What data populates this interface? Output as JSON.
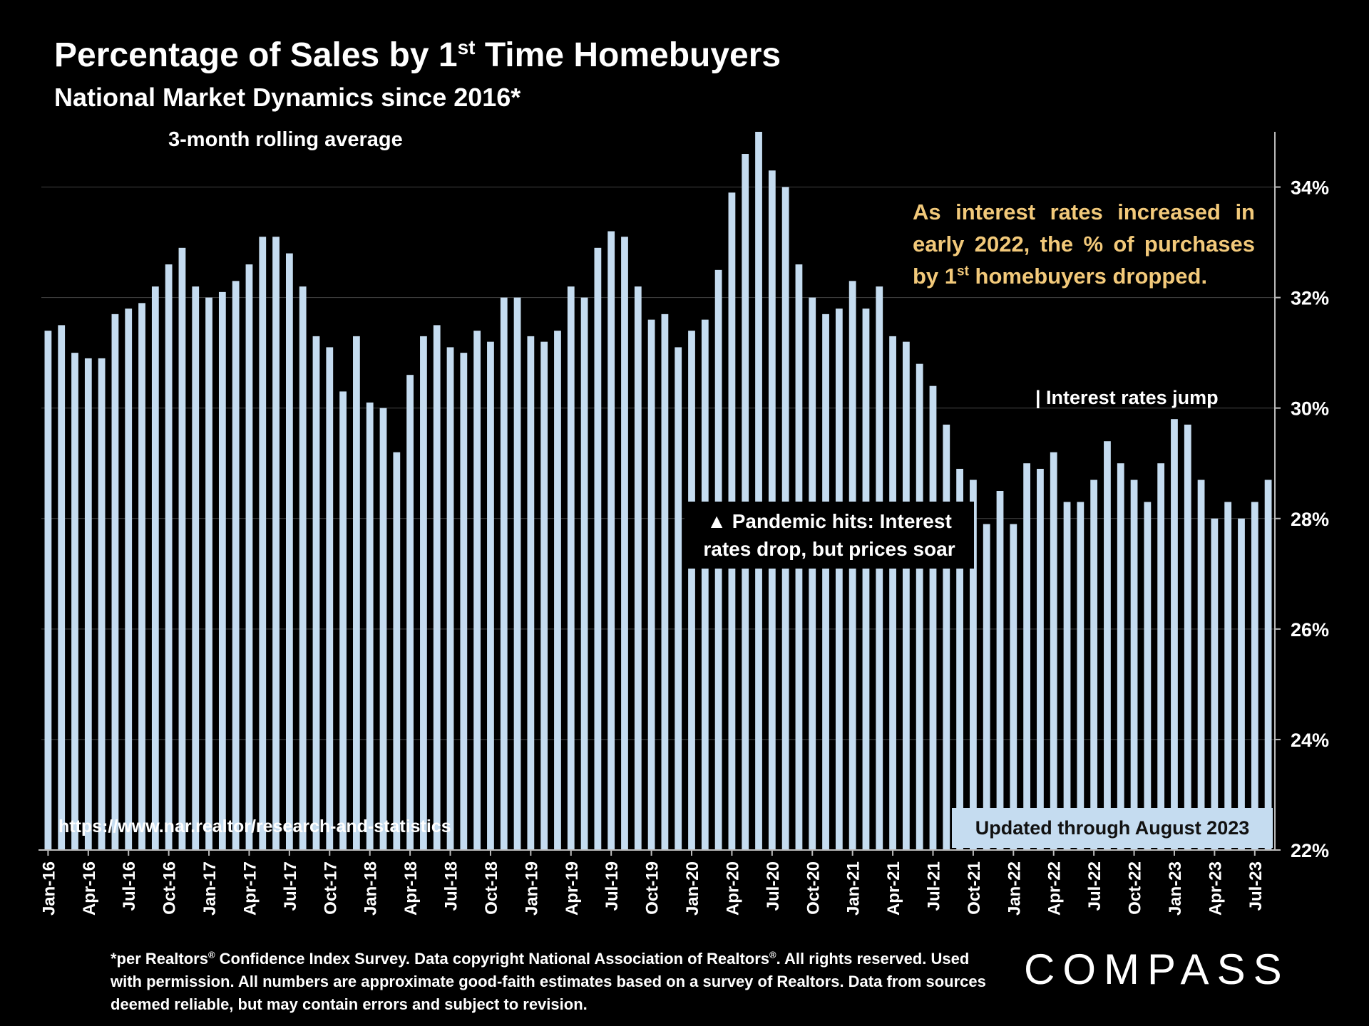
{
  "title": {
    "main": "Percentage of Sales by 1",
    "sup": "st",
    "rest": " Time Homebuyers"
  },
  "subtitle": "National Market Dynamics since 2016*",
  "note": "3-month rolling average",
  "callout": {
    "part1": "As interest rates increased in early 2022, the % of purchases by 1",
    "sup": "st",
    "part2": " homebuyers dropped."
  },
  "annotations": {
    "rates_jump": "| Interest rates jump",
    "pandemic": "▲ Pandemic hits: Interest rates drop, but prices soar",
    "updated": "Updated through August 2023",
    "source": "https://www.nar.realtor/research-and-statistics"
  },
  "footnote": {
    "p1": "*per Realtors",
    "reg1": "®",
    "p2": " Confidence Index Survey. Data copyright National Association of Realtors",
    "reg2": "®",
    "p3": ". All rights reserved. Used with permission. All numbers are approximate good-faith estimates based on a survey of Realtors. Data from sources deemed reliable, but may contain errors and subject to revision."
  },
  "logo": "COMPASS",
  "colors": {
    "bar": "#c5dcf0",
    "callout": "#f2c97a",
    "background": "#000000",
    "grid": "#444444"
  },
  "chart_data": {
    "type": "bar",
    "title": "Percentage of Sales by 1st Time Homebuyers",
    "subtitle": "National Market Dynamics since 2016*",
    "ylim": [
      22,
      35
    ],
    "yticks": [
      22,
      24,
      26,
      28,
      30,
      32,
      34
    ],
    "ytick_labels": [
      "22%",
      "24%",
      "26%",
      "28%",
      "30%",
      "32%",
      "34%"
    ],
    "grid": true,
    "xtick_labels": [
      "Jan-16",
      "Apr-16",
      "Jul-16",
      "Oct-16",
      "Jan-17",
      "Apr-17",
      "Jul-17",
      "Oct-17",
      "Jan-18",
      "Apr-18",
      "Jul-18",
      "Oct-18",
      "Jan-19",
      "Apr-19",
      "Jul-19",
      "Oct-19",
      "Jan-20",
      "Apr-20",
      "Jul-20",
      "Oct-20",
      "Jan-21",
      "Apr-21",
      "Jul-21",
      "Oct-21",
      "Jan-22",
      "Apr-22",
      "Jul-22",
      "Oct-22",
      "Jan-23",
      "Apr-23",
      "Jul-23"
    ],
    "xtick_every": 3,
    "categories": [
      "Jan-16",
      "Feb-16",
      "Mar-16",
      "Apr-16",
      "May-16",
      "Jun-16",
      "Jul-16",
      "Aug-16",
      "Sep-16",
      "Oct-16",
      "Nov-16",
      "Dec-16",
      "Jan-17",
      "Feb-17",
      "Mar-17",
      "Apr-17",
      "May-17",
      "Jun-17",
      "Jul-17",
      "Aug-17",
      "Sep-17",
      "Oct-17",
      "Nov-17",
      "Dec-17",
      "Jan-18",
      "Feb-18",
      "Mar-18",
      "Apr-18",
      "May-18",
      "Jun-18",
      "Jul-18",
      "Aug-18",
      "Sep-18",
      "Oct-18",
      "Nov-18",
      "Dec-18",
      "Jan-19",
      "Feb-19",
      "Mar-19",
      "Apr-19",
      "May-19",
      "Jun-19",
      "Jul-19",
      "Aug-19",
      "Sep-19",
      "Oct-19",
      "Nov-19",
      "Dec-19",
      "Jan-20",
      "Feb-20",
      "Mar-20",
      "Apr-20",
      "May-20",
      "Jun-20",
      "Jul-20",
      "Aug-20",
      "Sep-20",
      "Oct-20",
      "Nov-20",
      "Dec-20",
      "Jan-21",
      "Feb-21",
      "Mar-21",
      "Apr-21",
      "May-21",
      "Jun-21",
      "Jul-21",
      "Aug-21",
      "Sep-21",
      "Oct-21",
      "Nov-21",
      "Dec-21",
      "Jan-22",
      "Feb-22",
      "Mar-22",
      "Apr-22",
      "May-22",
      "Jun-22",
      "Jul-22",
      "Aug-22",
      "Sep-22",
      "Oct-22",
      "Nov-22",
      "Dec-22",
      "Jan-23",
      "Feb-23",
      "Mar-23",
      "Apr-23",
      "May-23",
      "Jun-23",
      "Jul-23",
      "Aug-23"
    ],
    "values": [
      31.4,
      31.5,
      31.0,
      30.9,
      30.9,
      31.7,
      31.8,
      31.9,
      32.2,
      32.6,
      32.9,
      32.2,
      32.0,
      32.1,
      32.3,
      32.6,
      33.1,
      33.1,
      32.8,
      32.2,
      31.3,
      31.1,
      30.3,
      31.3,
      30.1,
      30.0,
      29.2,
      30.6,
      31.3,
      31.5,
      31.1,
      31.0,
      31.4,
      31.2,
      32.0,
      32.0,
      31.3,
      31.2,
      31.4,
      32.2,
      32.0,
      32.9,
      33.2,
      33.1,
      32.2,
      31.6,
      31.7,
      31.1,
      31.4,
      31.6,
      32.5,
      33.9,
      34.6,
      35.0,
      34.3,
      34.0,
      32.6,
      32.0,
      31.7,
      31.8,
      32.3,
      31.8,
      32.2,
      31.3,
      31.2,
      30.8,
      30.4,
      29.7,
      28.9,
      28.7,
      27.9,
      28.5,
      27.9,
      29.0,
      28.9,
      29.2,
      28.3,
      28.3,
      28.7,
      29.4,
      29.0,
      28.7,
      28.3,
      29.0,
      29.8,
      29.7,
      28.7,
      28.0,
      28.3,
      28.0,
      28.3,
      28.7
    ]
  }
}
